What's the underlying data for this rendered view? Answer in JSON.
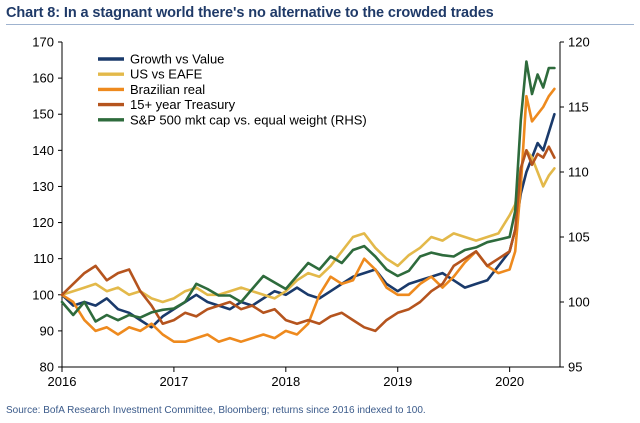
{
  "title": "Chart 8: In a stagnant world there's no alternative to the crowded trades",
  "source": "Source: BofA Research Investment Committee, Bloomberg; returns since 2016 indexed to 100.",
  "chart_data": {
    "type": "line",
    "title": "Chart 8: In a stagnant world there's no alternative to the crowded trades",
    "xlabel": "",
    "ylabel": "",
    "xlim": [
      2016,
      2020.45
    ],
    "ylim": [
      80,
      170
    ],
    "ylim_right": [
      95,
      120
    ],
    "x_ticks": [
      "2016",
      "2017",
      "2018",
      "2019",
      "2020"
    ],
    "x_tick_values": [
      2016,
      2017,
      2018,
      2019,
      2020
    ],
    "y_ticks_left": [
      "80",
      "90",
      "100",
      "110",
      "120",
      "130",
      "140",
      "150",
      "160",
      "170"
    ],
    "y_ticks_left_values": [
      80,
      90,
      100,
      110,
      120,
      130,
      140,
      150,
      160,
      170
    ],
    "y_ticks_right": [
      "95",
      "100",
      "105",
      "110",
      "115",
      "120"
    ],
    "y_ticks_right_values": [
      95,
      100,
      105,
      110,
      115,
      120
    ],
    "grid": false,
    "legend_position": "top-left",
    "series": [
      {
        "name": "Growth vs Value",
        "color": "#1a3a6b",
        "axis": "left",
        "x": [
          2016,
          2016.1,
          2016.2,
          2016.3,
          2016.4,
          2016.5,
          2016.6,
          2016.7,
          2016.8,
          2016.9,
          2017,
          2017.1,
          2017.2,
          2017.3,
          2017.4,
          2017.5,
          2017.6,
          2017.7,
          2017.8,
          2017.9,
          2018,
          2018.1,
          2018.2,
          2018.3,
          2018.4,
          2018.5,
          2018.6,
          2018.7,
          2018.8,
          2018.9,
          2019,
          2019.1,
          2019.2,
          2019.3,
          2019.4,
          2019.5,
          2019.6,
          2019.7,
          2019.8,
          2019.9,
          2020,
          2020.05,
          2020.1,
          2020.15,
          2020.2,
          2020.25,
          2020.3,
          2020.35,
          2020.4
        ],
        "values": [
          100,
          97,
          98,
          97,
          99,
          96,
          95,
          93,
          91,
          94,
          96,
          98,
          100,
          98,
          97,
          96,
          98,
          97,
          99,
          101,
          100,
          102,
          100,
          99,
          101,
          103,
          105,
          106,
          107,
          103,
          101,
          103,
          104,
          105,
          106,
          104,
          102,
          103,
          104,
          108,
          112,
          118,
          128,
          134,
          138,
          142,
          140,
          145,
          150
        ]
      },
      {
        "name": "US vs EAFE",
        "color": "#e3b94a",
        "axis": "left",
        "x": [
          2016,
          2016.1,
          2016.2,
          2016.3,
          2016.4,
          2016.5,
          2016.6,
          2016.7,
          2016.8,
          2016.9,
          2017,
          2017.1,
          2017.2,
          2017.3,
          2017.4,
          2017.5,
          2017.6,
          2017.7,
          2017.8,
          2017.9,
          2018,
          2018.1,
          2018.2,
          2018.3,
          2018.4,
          2018.5,
          2018.6,
          2018.7,
          2018.8,
          2018.9,
          2019,
          2019.1,
          2019.2,
          2019.3,
          2019.4,
          2019.5,
          2019.6,
          2019.7,
          2019.8,
          2019.9,
          2020,
          2020.05,
          2020.1,
          2020.15,
          2020.2,
          2020.25,
          2020.3,
          2020.35,
          2020.4
        ],
        "values": [
          100,
          101,
          102,
          103,
          101,
          102,
          100,
          101,
          99,
          98,
          99,
          101,
          102,
          100,
          100,
          101,
          102,
          101,
          100,
          99,
          101,
          104,
          106,
          105,
          108,
          112,
          116,
          117,
          113,
          110,
          108,
          111,
          113,
          116,
          115,
          117,
          116,
          115,
          116,
          117,
          122,
          125,
          135,
          140,
          138,
          134,
          130,
          133,
          135
        ]
      },
      {
        "name": "Brazilian real",
        "color": "#ee8a1e",
        "axis": "left",
        "x": [
          2016,
          2016.1,
          2016.2,
          2016.3,
          2016.4,
          2016.5,
          2016.6,
          2016.7,
          2016.8,
          2016.9,
          2017,
          2017.1,
          2017.2,
          2017.3,
          2017.4,
          2017.5,
          2017.6,
          2017.7,
          2017.8,
          2017.9,
          2018,
          2018.1,
          2018.2,
          2018.3,
          2018.4,
          2018.5,
          2018.6,
          2018.7,
          2018.8,
          2018.9,
          2019,
          2019.1,
          2019.2,
          2019.3,
          2019.4,
          2019.5,
          2019.6,
          2019.7,
          2019.8,
          2019.9,
          2020,
          2020.05,
          2020.1,
          2020.15,
          2020.2,
          2020.25,
          2020.3,
          2020.35,
          2020.4
        ],
        "values": [
          100,
          98,
          93,
          90,
          91,
          89,
          91,
          90,
          92,
          89,
          87,
          87,
          88,
          89,
          87,
          88,
          87,
          88,
          89,
          88,
          90,
          89,
          92,
          100,
          105,
          103,
          104,
          110,
          107,
          102,
          100,
          100,
          103,
          105,
          102,
          105,
          109,
          112,
          108,
          106,
          107,
          112,
          130,
          155,
          148,
          150,
          152,
          155,
          157
        ]
      },
      {
        "name": "15+ year Treasury",
        "color": "#b5541e",
        "axis": "left",
        "x": [
          2016,
          2016.1,
          2016.2,
          2016.3,
          2016.4,
          2016.5,
          2016.6,
          2016.7,
          2016.8,
          2016.9,
          2017,
          2017.1,
          2017.2,
          2017.3,
          2017.4,
          2017.5,
          2017.6,
          2017.7,
          2017.8,
          2017.9,
          2018,
          2018.1,
          2018.2,
          2018.3,
          2018.4,
          2018.5,
          2018.6,
          2018.7,
          2018.8,
          2018.9,
          2019,
          2019.1,
          2019.2,
          2019.3,
          2019.4,
          2019.5,
          2019.6,
          2019.7,
          2019.8,
          2019.9,
          2020,
          2020.05,
          2020.1,
          2020.15,
          2020.2,
          2020.25,
          2020.3,
          2020.35,
          2020.4
        ],
        "values": [
          100,
          103,
          106,
          108,
          104,
          106,
          107,
          101,
          97,
          92,
          93,
          95,
          94,
          96,
          97,
          98,
          96,
          97,
          95,
          96,
          93,
          92,
          93,
          92,
          94,
          95,
          93,
          91,
          90,
          93,
          95,
          96,
          98,
          101,
          103,
          108,
          110,
          112,
          108,
          110,
          112,
          118,
          135,
          140,
          136,
          139,
          138,
          141,
          138
        ]
      },
      {
        "name": "S&P 500 mkt cap vs. equal weight (RHS)",
        "color": "#2e6b3c",
        "axis": "right",
        "x": [
          2016,
          2016.1,
          2016.2,
          2016.3,
          2016.4,
          2016.5,
          2016.6,
          2016.7,
          2016.8,
          2016.9,
          2017,
          2017.1,
          2017.2,
          2017.3,
          2017.4,
          2017.5,
          2017.6,
          2017.7,
          2017.8,
          2017.9,
          2018,
          2018.1,
          2018.2,
          2018.3,
          2018.4,
          2018.5,
          2018.6,
          2018.7,
          2018.8,
          2018.9,
          2019,
          2019.1,
          2019.2,
          2019.3,
          2019.4,
          2019.5,
          2019.6,
          2019.7,
          2019.8,
          2019.9,
          2020,
          2020.05,
          2020.1,
          2020.15,
          2020.2,
          2020.25,
          2020.3,
          2020.35,
          2020.4
        ],
        "values": [
          100,
          99,
          100,
          98.5,
          99,
          98.6,
          99,
          98.8,
          99.2,
          99.4,
          99.5,
          100,
          101.4,
          101,
          100.5,
          100.5,
          100,
          101,
          102,
          101.5,
          101,
          102,
          103,
          102.5,
          103.5,
          103,
          104,
          104.3,
          103.5,
          102.5,
          102,
          102.4,
          103.5,
          103.8,
          103.6,
          103.5,
          104,
          104.2,
          104.6,
          104.8,
          105,
          107,
          114,
          118.5,
          116,
          117.5,
          116.5,
          118,
          118
        ]
      }
    ]
  }
}
